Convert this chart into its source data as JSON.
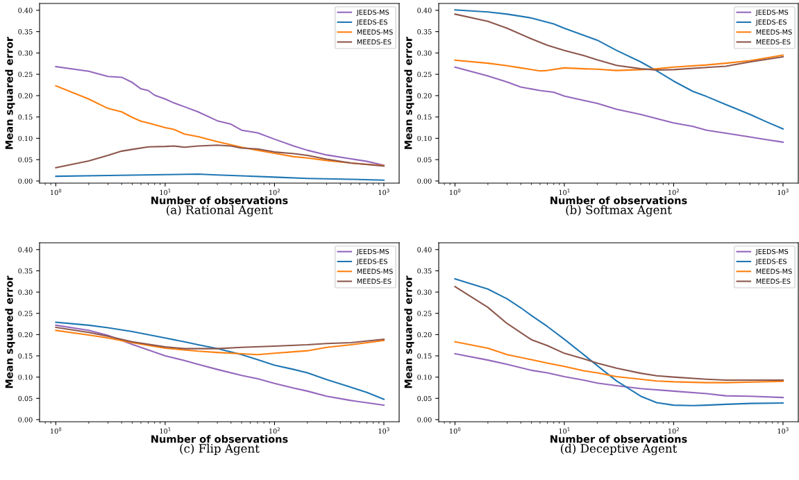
{
  "chart_data": [
    {
      "type": "line",
      "title": "(a) Rational Agent",
      "xlabel": "Number of observations",
      "ylabel": "Mean squared error",
      "log": "x",
      "xlim": [
        0.71,
        1380
      ],
      "ylim": [
        -0.005,
        0.416
      ],
      "xticks": [
        {
          "value": 1,
          "label": "10$^{0}$"
        },
        {
          "value": 10,
          "label": "10$^{1}$"
        },
        {
          "value": 100,
          "label": "10$^{2}$"
        },
        {
          "value": 1000,
          "label": "10$^{3}$"
        }
      ],
      "yticks": [
        {
          "value": 0,
          "label": "0.00"
        },
        {
          "value": 0.05,
          "label": "0.05"
        },
        {
          "value": 0.1,
          "label": "0.10"
        },
        {
          "value": 0.15,
          "label": "0.15"
        },
        {
          "value": 0.2,
          "label": "0.20"
        },
        {
          "value": 0.25,
          "label": "0.25"
        },
        {
          "value": 0.3,
          "label": "0.30"
        },
        {
          "value": 0.35,
          "label": "0.35"
        },
        {
          "value": 0.4,
          "label": "0.40"
        }
      ],
      "legend": "top right",
      "grid": false,
      "marker": "none",
      "line_style": "solid",
      "series": [
        {
          "name": "JEEDS-MS",
          "color": "#9467bd",
          "x": [
            1,
            2,
            3,
            4,
            5,
            6,
            7,
            8,
            10,
            12,
            15,
            20,
            30,
            40,
            50,
            70,
            100,
            150,
            200,
            300,
            500,
            700,
            1000
          ],
          "values": [
            0.268,
            0.257,
            0.245,
            0.243,
            0.231,
            0.216,
            0.212,
            0.201,
            0.192,
            0.183,
            0.174,
            0.162,
            0.141,
            0.133,
            0.119,
            0.113,
            0.098,
            0.082,
            0.072,
            0.061,
            0.052,
            0.046,
            0.037
          ]
        },
        {
          "name": "JEEDS-ES",
          "color": "#1f77b4",
          "x": [
            1,
            3,
            10,
            20,
            30,
            50,
            100,
            200,
            500,
            1000
          ],
          "values": [
            0.011,
            0.013,
            0.015,
            0.016,
            0.014,
            0.012,
            0.009,
            0.006,
            0.004,
            0.002
          ]
        },
        {
          "name": "MEEDS-MS",
          "color": "#ff7f0e",
          "x": [
            1,
            2,
            3,
            4,
            5,
            6,
            7,
            10,
            12,
            15,
            20,
            30,
            50,
            70,
            100,
            150,
            200,
            300,
            500,
            1000
          ],
          "values": [
            0.223,
            0.192,
            0.17,
            0.162,
            0.149,
            0.14,
            0.136,
            0.125,
            0.121,
            0.11,
            0.104,
            0.092,
            0.079,
            0.072,
            0.065,
            0.057,
            0.054,
            0.048,
            0.042,
            0.036
          ]
        },
        {
          "name": "MEEDS-ES",
          "color": "#8c564b",
          "x": [
            1,
            2,
            3,
            4,
            5,
            7,
            10,
            12,
            15,
            20,
            30,
            40,
            50,
            70,
            100,
            150,
            200,
            300,
            500,
            1000
          ],
          "values": [
            0.031,
            0.047,
            0.06,
            0.07,
            0.074,
            0.08,
            0.081,
            0.082,
            0.079,
            0.082,
            0.084,
            0.082,
            0.077,
            0.075,
            0.068,
            0.064,
            0.06,
            0.051,
            0.042,
            0.035
          ]
        }
      ]
    },
    {
      "type": "line",
      "title": "(b) Softmax Agent",
      "xlabel": "Number of observations",
      "ylabel": "Mean squared error",
      "log": "x",
      "xlim": [
        0.71,
        1380
      ],
      "ylim": [
        -0.005,
        0.416
      ],
      "xticks": [
        {
          "value": 1,
          "label": "10$^{0}$"
        },
        {
          "value": 10,
          "label": "10$^{1}$"
        },
        {
          "value": 100,
          "label": "10$^{2}$"
        },
        {
          "value": 1000,
          "label": "10$^{3}$"
        }
      ],
      "yticks": [
        {
          "value": 0,
          "label": "0.00"
        },
        {
          "value": 0.05,
          "label": "0.05"
        },
        {
          "value": 0.1,
          "label": "0.10"
        },
        {
          "value": 0.15,
          "label": "0.15"
        },
        {
          "value": 0.2,
          "label": "0.20"
        },
        {
          "value": 0.25,
          "label": "0.25"
        },
        {
          "value": 0.3,
          "label": "0.30"
        },
        {
          "value": 0.35,
          "label": "0.35"
        },
        {
          "value": 0.4,
          "label": "0.40"
        }
      ],
      "legend": "top right",
      "grid": false,
      "marker": "none",
      "line_style": "solid",
      "series": [
        {
          "name": "JEEDS-MS",
          "color": "#9467bd",
          "x": [
            1,
            2,
            3,
            4,
            6,
            8,
            10,
            15,
            20,
            30,
            50,
            70,
            100,
            150,
            200,
            300,
            500,
            700,
            1000
          ],
          "values": [
            0.267,
            0.246,
            0.232,
            0.22,
            0.212,
            0.208,
            0.199,
            0.189,
            0.182,
            0.168,
            0.156,
            0.146,
            0.136,
            0.128,
            0.119,
            0.112,
            0.103,
            0.097,
            0.091
          ]
        },
        {
          "name": "JEEDS-ES",
          "color": "#1f77b4",
          "x": [
            1,
            2,
            3,
            5,
            8,
            10,
            20,
            30,
            50,
            70,
            100,
            150,
            200,
            300,
            500,
            700,
            1000
          ],
          "values": [
            0.401,
            0.396,
            0.391,
            0.382,
            0.368,
            0.358,
            0.33,
            0.306,
            0.279,
            0.258,
            0.234,
            0.21,
            0.198,
            0.179,
            0.156,
            0.139,
            0.122
          ]
        },
        {
          "name": "MEEDS-MS",
          "color": "#ff7f0e",
          "x": [
            1,
            2,
            3,
            4,
            6,
            7,
            10,
            15,
            20,
            30,
            50,
            70,
            100,
            200,
            300,
            500,
            1000
          ],
          "values": [
            0.283,
            0.276,
            0.27,
            0.265,
            0.258,
            0.259,
            0.265,
            0.263,
            0.262,
            0.259,
            0.261,
            0.263,
            0.267,
            0.272,
            0.276,
            0.282,
            0.295
          ]
        },
        {
          "name": "MEEDS-ES",
          "color": "#8c564b",
          "x": [
            1,
            2,
            3,
            5,
            7,
            10,
            15,
            20,
            30,
            50,
            70,
            100,
            200,
            300,
            500,
            1000
          ],
          "values": [
            0.391,
            0.374,
            0.358,
            0.333,
            0.318,
            0.306,
            0.294,
            0.284,
            0.271,
            0.263,
            0.26,
            0.261,
            0.266,
            0.269,
            0.279,
            0.291
          ]
        }
      ]
    },
    {
      "type": "line",
      "title": "(c) Flip Agent",
      "xlabel": "Number of observations",
      "ylabel": "Mean squared error",
      "log": "x",
      "xlim": [
        0.71,
        1380
      ],
      "ylim": [
        -0.005,
        0.416
      ],
      "xticks": [
        {
          "value": 1,
          "label": "10$^{0}$"
        },
        {
          "value": 10,
          "label": "10$^{1}$"
        },
        {
          "value": 100,
          "label": "10$^{2}$"
        },
        {
          "value": 1000,
          "label": "10$^{3}$"
        }
      ],
      "yticks": [
        {
          "value": 0,
          "label": "0.00"
        },
        {
          "value": 0.05,
          "label": "0.05"
        },
        {
          "value": 0.1,
          "label": "0.10"
        },
        {
          "value": 0.15,
          "label": "0.15"
        },
        {
          "value": 0.2,
          "label": "0.20"
        },
        {
          "value": 0.25,
          "label": "0.25"
        },
        {
          "value": 0.3,
          "label": "0.30"
        },
        {
          "value": 0.35,
          "label": "0.35"
        },
        {
          "value": 0.4,
          "label": "0.40"
        }
      ],
      "legend": "top right",
      "grid": false,
      "marker": "none",
      "line_style": "solid",
      "series": [
        {
          "name": "JEEDS-MS",
          "color": "#9467bd",
          "x": [
            1,
            2,
            3,
            5,
            7,
            10,
            15,
            20,
            30,
            50,
            70,
            100,
            150,
            200,
            300,
            500,
            1000
          ],
          "values": [
            0.222,
            0.21,
            0.198,
            0.177,
            0.164,
            0.15,
            0.139,
            0.13,
            0.118,
            0.104,
            0.096,
            0.085,
            0.074,
            0.067,
            0.055,
            0.045,
            0.034
          ]
        },
        {
          "name": "JEEDS-ES",
          "color": "#1f77b4",
          "x": [
            1,
            2,
            3,
            5,
            10,
            15,
            20,
            30,
            50,
            70,
            100,
            150,
            200,
            300,
            500,
            700,
            1000
          ],
          "values": [
            0.229,
            0.222,
            0.216,
            0.207,
            0.192,
            0.183,
            0.176,
            0.167,
            0.153,
            0.141,
            0.128,
            0.118,
            0.11,
            0.094,
            0.076,
            0.064,
            0.048
          ]
        },
        {
          "name": "MEEDS-MS",
          "color": "#ff7f0e",
          "x": [
            1,
            2,
            3,
            5,
            10,
            15,
            20,
            30,
            50,
            70,
            100,
            200,
            300,
            500,
            1000
          ],
          "values": [
            0.21,
            0.199,
            0.192,
            0.181,
            0.168,
            0.164,
            0.161,
            0.158,
            0.155,
            0.153,
            0.156,
            0.162,
            0.17,
            0.176,
            0.186
          ]
        },
        {
          "name": "MEEDS-ES",
          "color": "#8c564b",
          "x": [
            1,
            2,
            3,
            5,
            10,
            15,
            20,
            30,
            50,
            100,
            200,
            300,
            500,
            1000
          ],
          "values": [
            0.217,
            0.205,
            0.196,
            0.183,
            0.171,
            0.167,
            0.167,
            0.167,
            0.17,
            0.173,
            0.176,
            0.179,
            0.181,
            0.189
          ]
        }
      ]
    },
    {
      "type": "line",
      "title": "(d) Deceptive Agent",
      "xlabel": "Number of observations",
      "ylabel": "Mean squared error",
      "log": "x",
      "xlim": [
        0.71,
        1380
      ],
      "ylim": [
        -0.005,
        0.416
      ],
      "xticks": [
        {
          "value": 1,
          "label": "10$^{0}$"
        },
        {
          "value": 10,
          "label": "10$^{1}$"
        },
        {
          "value": 100,
          "label": "10$^{2}$"
        },
        {
          "value": 1000,
          "label": "10$^{3}$"
        }
      ],
      "yticks": [
        {
          "value": 0,
          "label": "0.00"
        },
        {
          "value": 0.05,
          "label": "0.05"
        },
        {
          "value": 0.1,
          "label": "0.10"
        },
        {
          "value": 0.15,
          "label": "0.15"
        },
        {
          "value": 0.2,
          "label": "0.20"
        },
        {
          "value": 0.25,
          "label": "0.25"
        },
        {
          "value": 0.3,
          "label": "0.30"
        },
        {
          "value": 0.35,
          "label": "0.35"
        },
        {
          "value": 0.4,
          "label": "0.40"
        }
      ],
      "legend": "top right",
      "grid": false,
      "marker": "none",
      "line_style": "solid",
      "series": [
        {
          "name": "JEEDS-MS",
          "color": "#9467bd",
          "x": [
            1,
            2,
            3,
            5,
            7,
            10,
            15,
            20,
            30,
            50,
            100,
            200,
            300,
            500,
            1000
          ],
          "values": [
            0.155,
            0.14,
            0.13,
            0.116,
            0.11,
            0.101,
            0.093,
            0.086,
            0.08,
            0.073,
            0.067,
            0.061,
            0.056,
            0.055,
            0.052
          ]
        },
        {
          "name": "JEEDS-ES",
          "color": "#1f77b4",
          "x": [
            1,
            2,
            3,
            4,
            5,
            7,
            10,
            15,
            20,
            30,
            50,
            70,
            100,
            150,
            200,
            300,
            500,
            1000
          ],
          "values": [
            0.331,
            0.307,
            0.284,
            0.263,
            0.245,
            0.219,
            0.189,
            0.153,
            0.127,
            0.091,
            0.055,
            0.04,
            0.034,
            0.033,
            0.034,
            0.036,
            0.038,
            0.039
          ]
        },
        {
          "name": "MEEDS-MS",
          "color": "#ff7f0e",
          "x": [
            1,
            2,
            3,
            5,
            7,
            10,
            15,
            20,
            30,
            50,
            70,
            100,
            200,
            300,
            1000
          ],
          "values": [
            0.183,
            0.168,
            0.153,
            0.141,
            0.133,
            0.125,
            0.115,
            0.11,
            0.101,
            0.095,
            0.091,
            0.089,
            0.087,
            0.087,
            0.09
          ]
        },
        {
          "name": "MEEDS-ES",
          "color": "#8c564b",
          "x": [
            1,
            2,
            3,
            5,
            7,
            10,
            15,
            20,
            30,
            50,
            70,
            100,
            200,
            300,
            1000
          ],
          "values": [
            0.313,
            0.264,
            0.226,
            0.188,
            0.174,
            0.156,
            0.143,
            0.133,
            0.121,
            0.109,
            0.103,
            0.1,
            0.095,
            0.093,
            0.093
          ]
        }
      ]
    }
  ]
}
